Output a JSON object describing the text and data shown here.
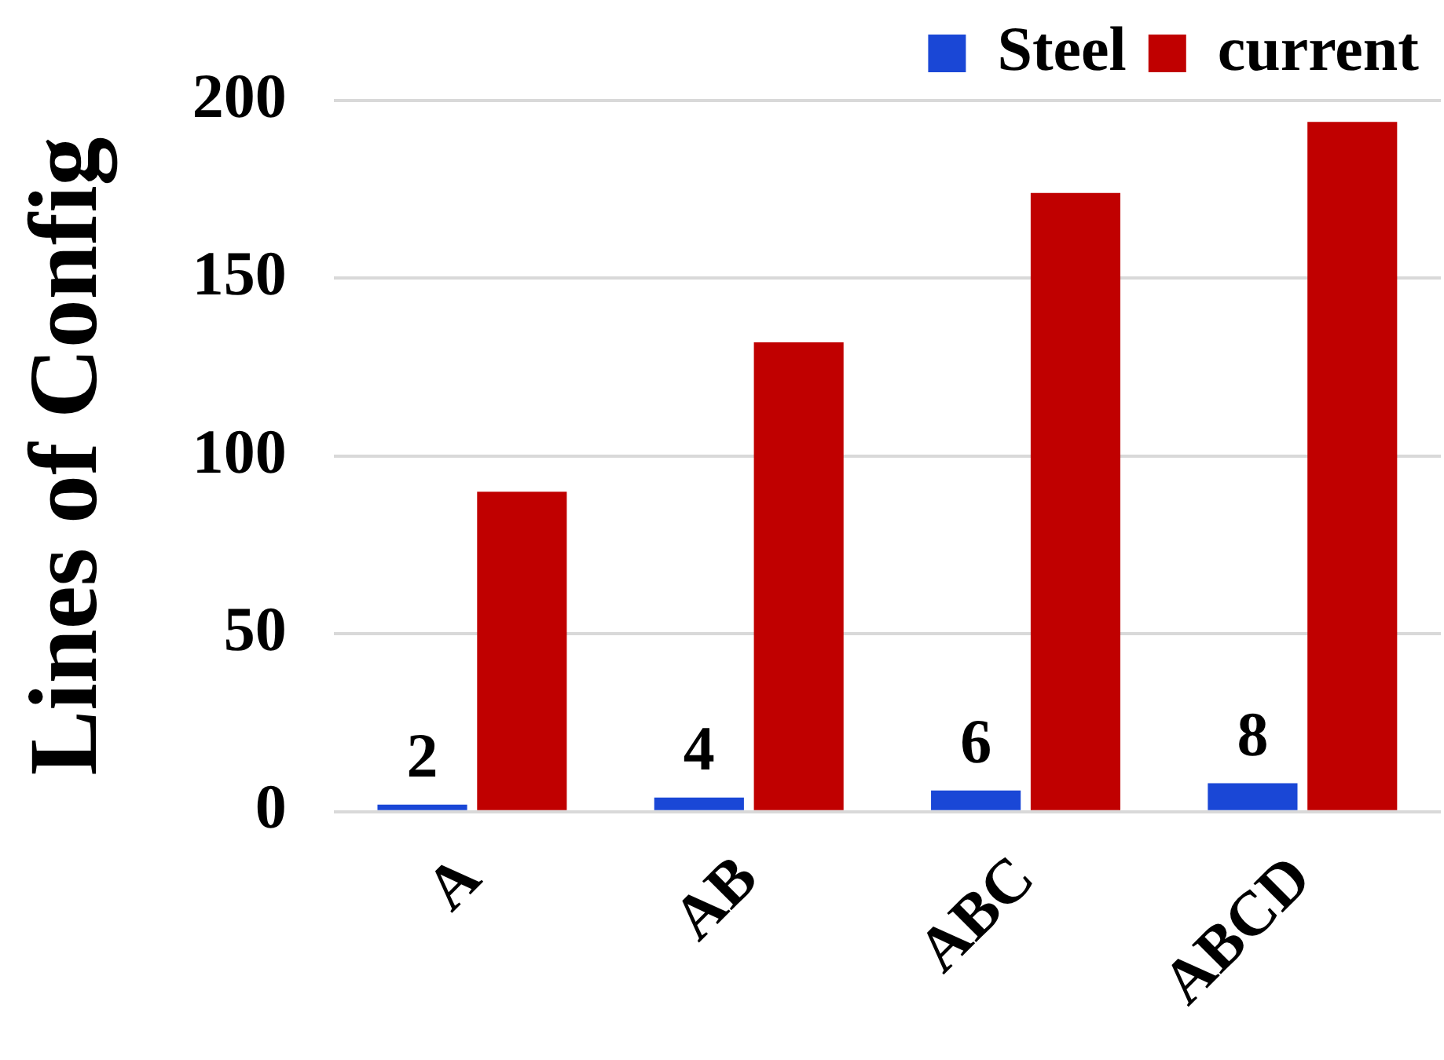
{
  "chart_data": {
    "type": "bar",
    "ylabel": "Lines of Config",
    "categories": [
      "A",
      "AB",
      "ABC",
      "ABCD"
    ],
    "series": [
      {
        "name": "Steel",
        "color": "#1a47d6",
        "values": [
          2,
          4,
          6,
          8
        ],
        "value_labels": [
          "2",
          "4",
          "6",
          "8"
        ]
      },
      {
        "name": "current",
        "color": "#c00000",
        "values": [
          90,
          132,
          174,
          194
        ]
      }
    ],
    "ylim": [
      0,
      200
    ],
    "yticks": [
      0,
      50,
      100,
      150,
      200
    ],
    "grid": "y",
    "legend": "top right"
  }
}
